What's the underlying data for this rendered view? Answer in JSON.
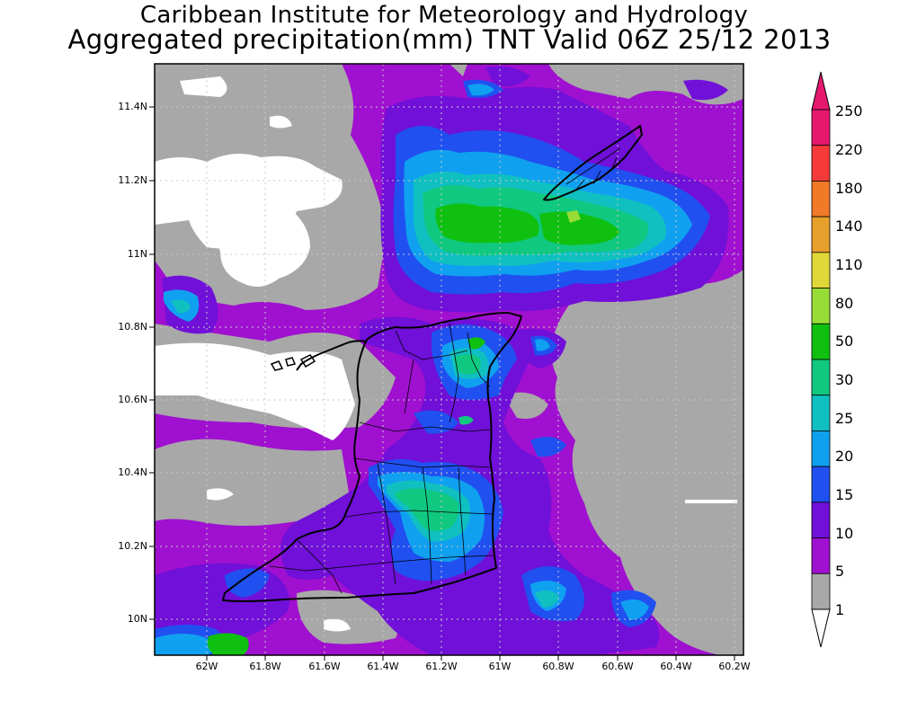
{
  "title": {
    "line1": "Caribbean Institute for Meteorology and Hydrology",
    "line2": "Aggregated precipitation(mm) TNT Valid 06Z 25/12 2013"
  },
  "axes": {
    "lat_labels": [
      "11.4N",
      "11.2N",
      "11N",
      "10.8N",
      "10.6N",
      "10.4N",
      "10.2N",
      "10N"
    ],
    "lon_labels": [
      "62W",
      "61.8W",
      "61.6W",
      "61.4W",
      "61.2W",
      "61W",
      "60.8W",
      "60.6W",
      "60.4W",
      "60.2W"
    ],
    "lat_values": [
      11.4,
      11.2,
      11.0,
      10.8,
      10.6,
      10.4,
      10.2,
      10.0
    ],
    "lon_values": [
      -62.0,
      -61.8,
      -61.6,
      -61.4,
      -61.2,
      -61.0,
      -60.8,
      -60.6,
      -60.4,
      -60.2
    ],
    "lat_range": [
      9.9,
      11.5
    ],
    "lon_range": [
      -62.14,
      -60.14
    ]
  },
  "colorbar": {
    "labels": [
      "250",
      "220",
      "180",
      "140",
      "110",
      "80",
      "50",
      "30",
      "25",
      "20",
      "15",
      "10",
      "5",
      "1"
    ],
    "colors": [
      "#e6186e",
      "#f53a3a",
      "#f07a28",
      "#e8a02c",
      "#e0d838",
      "#98dc38",
      "#10c010",
      "#10c880",
      "#10c0c0",
      "#10a0f0",
      "#2050f0",
      "#7010d8",
      "#a010d0",
      "#a8a8a8"
    ],
    "under_color": "#ffffff",
    "over_color": "#e6186e"
  },
  "colors": {
    "none": "#ffffff",
    "lvl1": "#a8a8a8",
    "lvl5": "#a010d0",
    "lvl10": "#7010d8",
    "lvl15": "#2050f0",
    "lvl20": "#10a0f0",
    "lvl25": "#10c0c0",
    "lvl30": "#10c880",
    "lvl50": "#10c010",
    "lvl80": "#98dc38"
  }
}
